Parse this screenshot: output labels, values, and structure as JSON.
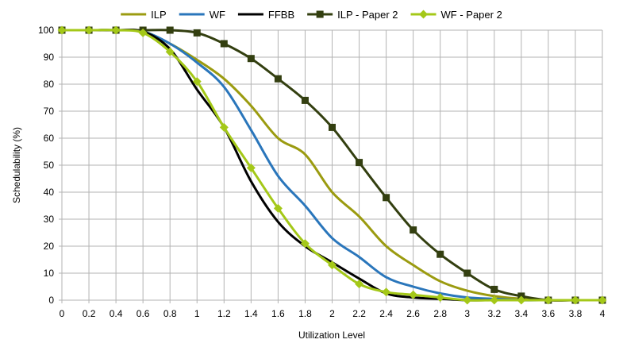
{
  "chart_data": {
    "type": "line",
    "title": "",
    "xlabel": "Utilization Level",
    "ylabel": "Schedulability (%)",
    "xlim": [
      0,
      4
    ],
    "ylim": [
      0,
      100
    ],
    "x_ticks": [
      "0",
      "0.2",
      "0.4",
      "0.6",
      "0.8",
      "1",
      "1.2",
      "1.4",
      "1.6",
      "1.8",
      "2",
      "2.2",
      "2.4",
      "2.6",
      "2.8",
      "3",
      "3.2",
      "3.4",
      "3.6",
      "3.8",
      "4"
    ],
    "y_ticks": [
      "0",
      "10",
      "20",
      "30",
      "40",
      "50",
      "60",
      "70",
      "80",
      "90",
      "100"
    ],
    "grid": true,
    "legend_position": "top",
    "x": [
      0,
      0.2,
      0.4,
      0.6,
      0.8,
      1,
      1.2,
      1.4,
      1.6,
      1.8,
      2,
      2.2,
      2.4,
      2.6,
      2.8,
      3,
      3.2,
      3.4,
      3.6,
      3.8,
      4
    ],
    "series": [
      {
        "name": "ILP",
        "color": "#9b9b10",
        "marker": "none",
        "values": [
          100,
          100,
          100,
          99.5,
          95,
          89,
          82,
          72,
          60,
          54,
          40,
          31,
          20,
          13,
          7,
          3.5,
          1.5,
          0.5,
          0,
          0,
          0
        ]
      },
      {
        "name": "WF",
        "color": "#2a76bb",
        "marker": "none",
        "values": [
          100,
          100,
          100,
          99.5,
          95,
          88,
          79,
          63,
          46,
          35,
          23,
          16,
          8.5,
          5,
          2.5,
          1,
          0.5,
          0,
          0,
          0,
          0
        ]
      },
      {
        "name": "FFBB",
        "color": "#000000",
        "marker": "none",
        "values": [
          100,
          100,
          100,
          99.5,
          93,
          78,
          64,
          44,
          29,
          20,
          14,
          8,
          2.5,
          1,
          0.5,
          0,
          0,
          0,
          0,
          0,
          0
        ]
      },
      {
        "name": "ILP - Paper 2",
        "color": "#333f10",
        "marker": "square",
        "values": [
          100,
          100,
          100,
          100,
          100,
          99,
          95,
          89.5,
          82,
          74,
          64,
          51,
          38,
          26,
          17,
          10,
          4,
          1.5,
          0,
          0,
          0
        ]
      },
      {
        "name": "WF - Paper 2",
        "color": "#a4c818",
        "marker": "diamond",
        "values": [
          100,
          100,
          100,
          99,
          92,
          81,
          64,
          49,
          34,
          21,
          13,
          6,
          3,
          2,
          1,
          0,
          0,
          0,
          0,
          0,
          0
        ]
      }
    ]
  }
}
